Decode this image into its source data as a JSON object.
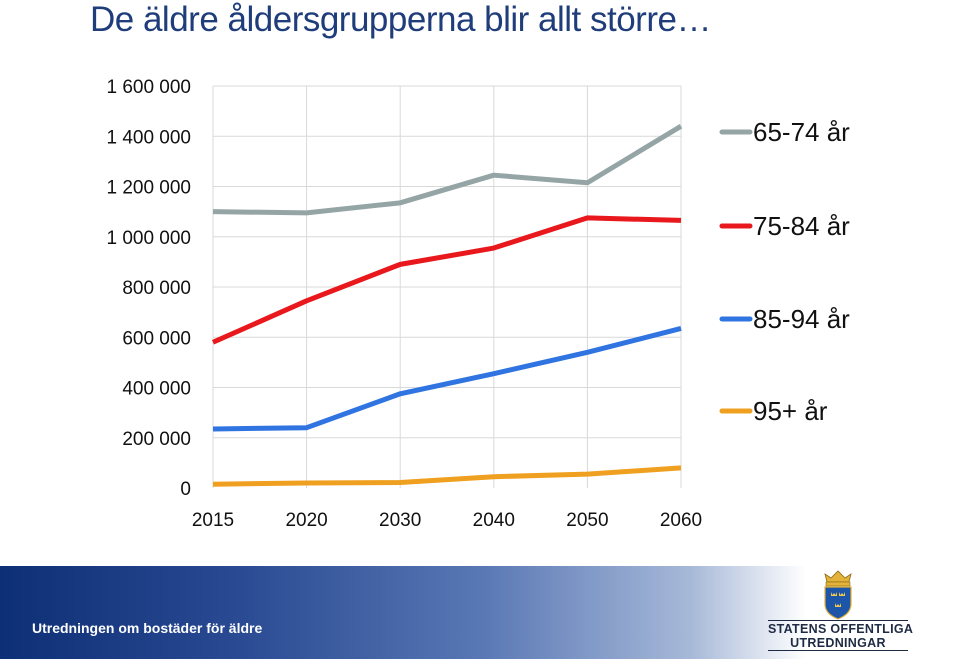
{
  "slide": {
    "title": "De äldre åldersgrupperna blir allt större…"
  },
  "footer": {
    "text": "Utredningen om bostäder för äldre",
    "logo_line1": "STATENS OFFENTLIGA",
    "logo_line2": "UTREDNINGAR"
  },
  "chart_data": {
    "type": "line",
    "title": "",
    "xlabel": "",
    "ylabel": "",
    "categories": [
      "2015",
      "2020",
      "2030",
      "2040",
      "2050",
      "2060"
    ],
    "ylim": [
      0,
      1600000
    ],
    "yticks": [
      0,
      200000,
      400000,
      600000,
      800000,
      1000000,
      1200000,
      1400000,
      1600000
    ],
    "ytick_labels": [
      "0",
      "200 000",
      "400 000",
      "600 000",
      "800 000",
      "1 000 000",
      "1 200 000",
      "1 400 000",
      "1 600 000"
    ],
    "grid": true,
    "legend_position": "right",
    "series": [
      {
        "name": "65-74 år",
        "color": "#95a5a6",
        "values": [
          1100000,
          1095000,
          1135000,
          1245000,
          1215000,
          1440000
        ]
      },
      {
        "name": "75-84 år",
        "color": "#e8181c",
        "values": [
          580000,
          745000,
          890000,
          955000,
          1075000,
          1065000
        ]
      },
      {
        "name": "85-94 år",
        "color": "#2f74e0",
        "values": [
          235000,
          240000,
          375000,
          455000,
          540000,
          635000
        ]
      },
      {
        "name": "95+ år",
        "color": "#f0a020",
        "values": [
          15000,
          20000,
          22000,
          45000,
          55000,
          80000
        ]
      }
    ]
  }
}
